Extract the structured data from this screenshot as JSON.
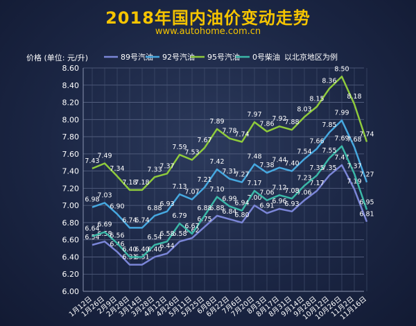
{
  "title": "2018年国内油价变动走势",
  "subtitle": "www.autohome.com.cn",
  "chart_data": {
    "type": "line",
    "ylabel": "价格  (单位: 元/升)",
    "note": "以北京地区为例",
    "ylim": [
      6.0,
      8.6
    ],
    "yticks": [
      "6.00",
      "6.20",
      "6.40",
      "6.60",
      "6.80",
      "7.00",
      "7.20",
      "7.40",
      "7.60",
      "7.80",
      "8.00",
      "8.20",
      "8.40",
      "8.60"
    ],
    "x": [
      "1月12日",
      "1月26日",
      "2月9日",
      "2月28日",
      "3月14日",
      "3月28日",
      "4月12日",
      "4月26日",
      "5月11日",
      "5月25日",
      "6月8日",
      "6月22日",
      "7月6日",
      "7月20日",
      "8月3日",
      "8月17日",
      "8月31日",
      "9月14日",
      "9月28日",
      "10月12日",
      "10月26日",
      "11月2日",
      "11月16日"
    ],
    "grid": true,
    "legend_position": "top",
    "series": [
      {
        "name": "89号汽油",
        "color": "#7b86d8",
        "values": [
          6.54,
          6.58,
          6.46,
          6.31,
          6.31,
          6.4,
          6.44,
          6.58,
          6.62,
          6.75,
          6.88,
          6.84,
          6.8,
          7.0,
          6.91,
          6.96,
          6.93,
          7.06,
          7.17,
          7.35,
          7.47,
          7.19,
          6.81
        ]
      },
      {
        "name": "92号汽油",
        "color": "#46a8e0",
        "values": [
          6.98,
          7.03,
          6.9,
          6.74,
          6.74,
          6.88,
          6.93,
          7.13,
          7.07,
          7.21,
          7.42,
          7.31,
          7.27,
          7.48,
          7.38,
          7.44,
          7.4,
          7.54,
          7.66,
          7.85,
          7.99,
          7.68,
          7.27
        ]
      },
      {
        "name": "95号汽油",
        "color": "#8fcb3c",
        "values": [
          7.43,
          7.49,
          7.34,
          7.18,
          7.18,
          7.33,
          7.37,
          7.59,
          7.53,
          7.67,
          7.89,
          7.78,
          7.74,
          7.97,
          7.86,
          7.92,
          7.88,
          8.03,
          8.15,
          8.36,
          8.5,
          8.18,
          7.74
        ]
      },
      {
        "name": "0号柴油",
        "color": "#3bb8a8",
        "values": [
          6.64,
          6.69,
          6.56,
          6.4,
          6.4,
          6.54,
          6.58,
          6.79,
          6.67,
          6.88,
          7.1,
          6.99,
          6.94,
          7.17,
          7.06,
          7.12,
          7.08,
          7.23,
          7.35,
          7.55,
          7.69,
          7.37,
          6.95
        ]
      }
    ]
  }
}
